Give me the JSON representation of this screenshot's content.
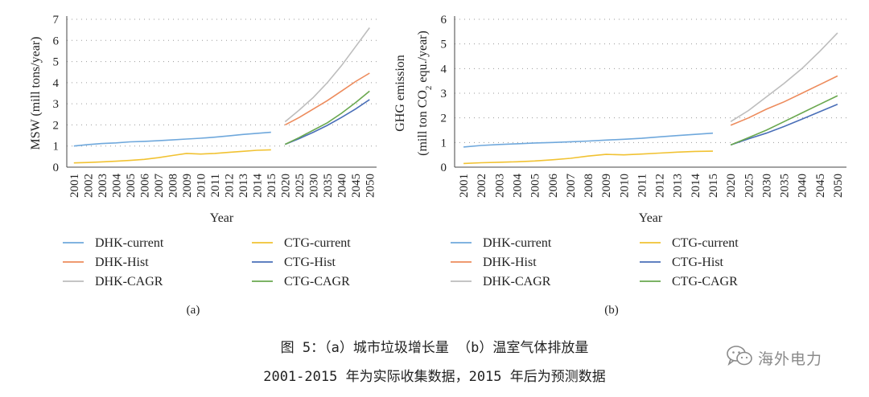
{
  "caption": {
    "line1": "图 5：（a）城市垃圾增长量 （b）温室气体排放量",
    "line2": "2001-2015 年为实际收集数据，2015 年后为预测数据"
  },
  "watermark": {
    "text": "海外电力",
    "icon": "wechat-icon"
  },
  "chart_data": [
    {
      "id": "a",
      "type": "line",
      "panel_label": "(a)",
      "xlabel": "Year",
      "ylabel": "MSW (mill tons/year)",
      "ylim": [
        0,
        7
      ],
      "yticks": [
        0,
        1,
        2,
        3,
        4,
        5,
        6,
        7
      ],
      "categories": [
        "2001",
        "2002",
        "2003",
        "2004",
        "2005",
        "2006",
        "2007",
        "2008",
        "2009",
        "2010",
        "2011",
        "2012",
        "2013",
        "2014",
        "2015",
        "2020",
        "2025",
        "2030",
        "2035",
        "2040",
        "2045",
        "2050"
      ],
      "grid": "horizontal dotted",
      "legend_position": "bottom",
      "series": [
        {
          "name": "DHK-current",
          "color": "#6fa8dc",
          "x": [
            "2001",
            "2002",
            "2003",
            "2004",
            "2005",
            "2006",
            "2007",
            "2008",
            "2009",
            "2010",
            "2011",
            "2012",
            "2013",
            "2014",
            "2015"
          ],
          "values": [
            1.0,
            1.07,
            1.12,
            1.15,
            1.2,
            1.22,
            1.25,
            1.29,
            1.33,
            1.37,
            1.42,
            1.48,
            1.55,
            1.6,
            1.65
          ]
        },
        {
          "name": "CTG-current",
          "color": "#f1c232",
          "x": [
            "2001",
            "2002",
            "2003",
            "2004",
            "2005",
            "2006",
            "2007",
            "2008",
            "2009",
            "2010",
            "2011",
            "2012",
            "2013",
            "2014",
            "2015"
          ],
          "values": [
            0.2,
            0.22,
            0.25,
            0.28,
            0.32,
            0.37,
            0.45,
            0.55,
            0.65,
            0.62,
            0.65,
            0.7,
            0.75,
            0.8,
            0.82
          ]
        },
        {
          "name": "DHK-Hist",
          "color": "#ed8b5c",
          "x": [
            "2020",
            "2025",
            "2030",
            "2035",
            "2040",
            "2045",
            "2050"
          ],
          "values": [
            2.0,
            2.35,
            2.75,
            3.15,
            3.6,
            4.05,
            4.45
          ]
        },
        {
          "name": "CTG-Hist",
          "color": "#4a6fb8",
          "x": [
            "2020",
            "2025",
            "2030",
            "2035",
            "2040",
            "2045",
            "2050"
          ],
          "values": [
            1.08,
            1.35,
            1.65,
            1.98,
            2.35,
            2.75,
            3.2
          ]
        },
        {
          "name": "DHK-CAGR",
          "color": "#bdbdbd",
          "x": [
            "2020",
            "2025",
            "2030",
            "2035",
            "2040",
            "2045",
            "2050"
          ],
          "values": [
            2.15,
            2.7,
            3.3,
            4.0,
            4.8,
            5.7,
            6.6
          ]
        },
        {
          "name": "CTG-CAGR",
          "color": "#6aa84f",
          "x": [
            "2020",
            "2025",
            "2030",
            "2035",
            "2040",
            "2045",
            "2050"
          ],
          "values": [
            1.08,
            1.4,
            1.75,
            2.1,
            2.55,
            3.05,
            3.6
          ]
        }
      ]
    },
    {
      "id": "b",
      "type": "line",
      "panel_label": "(b)",
      "xlabel": "Year",
      "ylabel_line1": "GHG emission",
      "ylabel_line2_pre": "(mill ton CO",
      "ylabel_sub": "2",
      "ylabel_line2_post": " equ./year)",
      "ylim": [
        0,
        6
      ],
      "yticks": [
        0,
        1,
        2,
        3,
        4,
        5,
        6
      ],
      "categories": [
        "2001",
        "2002",
        "2003",
        "2004",
        "2005",
        "2006",
        "2007",
        "2008",
        "2009",
        "2010",
        "2011",
        "2012",
        "2013",
        "2014",
        "2015",
        "2020",
        "2025",
        "2030",
        "2035",
        "2040",
        "2045",
        "2050"
      ],
      "grid": "horizontal dotted",
      "legend_position": "bottom",
      "series": [
        {
          "name": "DHK-current",
          "color": "#6fa8dc",
          "x": [
            "2001",
            "2002",
            "2003",
            "2004",
            "2005",
            "2006",
            "2007",
            "2008",
            "2009",
            "2010",
            "2011",
            "2012",
            "2013",
            "2014",
            "2015"
          ],
          "values": [
            0.82,
            0.88,
            0.92,
            0.95,
            0.98,
            1.0,
            1.03,
            1.06,
            1.1,
            1.13,
            1.17,
            1.23,
            1.28,
            1.33,
            1.38
          ]
        },
        {
          "name": "CTG-current",
          "color": "#f1c232",
          "x": [
            "2001",
            "2002",
            "2003",
            "2004",
            "2005",
            "2006",
            "2007",
            "2008",
            "2009",
            "2010",
            "2011",
            "2012",
            "2013",
            "2014",
            "2015"
          ],
          "values": [
            0.15,
            0.18,
            0.2,
            0.22,
            0.25,
            0.3,
            0.36,
            0.45,
            0.52,
            0.5,
            0.53,
            0.57,
            0.61,
            0.64,
            0.65
          ]
        },
        {
          "name": "DHK-Hist",
          "color": "#ed8b5c",
          "x": [
            "2020",
            "2025",
            "2030",
            "2035",
            "2040",
            "2045",
            "2050"
          ],
          "values": [
            1.7,
            2.0,
            2.35,
            2.65,
            3.0,
            3.35,
            3.7
          ]
        },
        {
          "name": "CTG-Hist",
          "color": "#4a6fb8",
          "x": [
            "2020",
            "2025",
            "2030",
            "2035",
            "2040",
            "2045",
            "2050"
          ],
          "values": [
            0.9,
            1.15,
            1.38,
            1.65,
            1.95,
            2.25,
            2.55
          ]
        },
        {
          "name": "DHK-CAGR",
          "color": "#bdbdbd",
          "x": [
            "2020",
            "2025",
            "2030",
            "2035",
            "2040",
            "2045",
            "2050"
          ],
          "values": [
            1.85,
            2.3,
            2.85,
            3.4,
            4.0,
            4.7,
            5.45
          ]
        },
        {
          "name": "CTG-CAGR",
          "color": "#6aa84f",
          "x": [
            "2020",
            "2025",
            "2030",
            "2035",
            "2040",
            "2045",
            "2050"
          ],
          "values": [
            0.9,
            1.2,
            1.5,
            1.85,
            2.2,
            2.55,
            2.9
          ]
        }
      ]
    }
  ]
}
